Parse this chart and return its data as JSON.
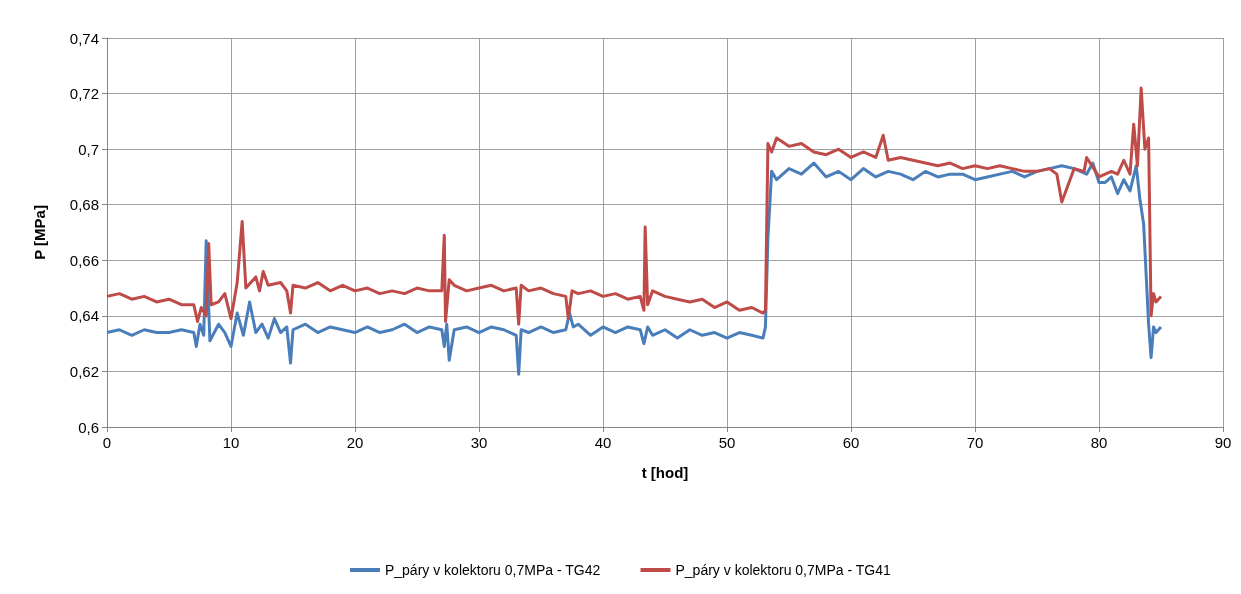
{
  "chart_data": {
    "type": "line",
    "xlabel": "t [hod]",
    "ylabel": "P [MPa]",
    "xlim": [
      0,
      90
    ],
    "xticks": [
      0,
      10,
      20,
      30,
      40,
      50,
      60,
      70,
      80,
      90
    ],
    "ylim": [
      0.6,
      0.74
    ],
    "yticks": [
      {
        "value": 0.6,
        "label": "0,6"
      },
      {
        "value": 0.62,
        "label": "0,62"
      },
      {
        "value": 0.64,
        "label": "0,64"
      },
      {
        "value": 0.66,
        "label": "0,66"
      },
      {
        "value": 0.68,
        "label": "0,68"
      },
      {
        "value": 0.7,
        "label": "0,7"
      },
      {
        "value": 0.72,
        "label": "0,72"
      },
      {
        "value": 0.74,
        "label": "0,74"
      }
    ],
    "grid": true,
    "legend": "bottom",
    "marker": "none",
    "line_style": "solid",
    "series": [
      {
        "name": "P_páry v kolektoru 0,7MPa - TG42",
        "color": "#4a7ebb",
        "x": [
          0,
          1,
          2,
          3,
          4,
          5,
          6,
          7,
          7.2,
          7.5,
          7.8,
          8.0,
          8.3,
          9,
          9.5,
          10,
          10.5,
          11,
          11.5,
          12,
          12.5,
          13,
          13.5,
          14,
          14.5,
          14.8,
          15,
          16,
          17,
          18,
          19,
          20,
          21,
          22,
          23,
          24,
          25,
          26,
          27,
          27.2,
          27.4,
          27.6,
          28,
          29,
          30,
          31,
          32,
          33,
          33.2,
          33.4,
          34,
          35,
          36,
          37,
          37.3,
          37.6,
          38,
          39,
          40,
          41,
          42,
          43,
          43.3,
          43.6,
          44,
          45,
          46,
          47,
          48,
          49,
          50,
          51,
          52,
          52.9,
          53.1,
          53.3,
          53.6,
          54,
          55,
          56,
          57,
          58,
          59,
          60,
          61,
          62,
          63,
          64,
          65,
          66,
          67,
          68,
          69,
          70,
          71,
          72,
          73,
          74,
          75,
          76,
          77,
          78,
          79,
          79.5,
          80,
          80.5,
          81,
          81.5,
          82,
          82.5,
          83,
          83.3,
          83.6,
          84,
          84.2,
          84.4,
          84.6,
          85
        ],
        "values": [
          0.634,
          0.635,
          0.633,
          0.635,
          0.634,
          0.634,
          0.635,
          0.634,
          0.629,
          0.637,
          0.633,
          0.667,
          0.631,
          0.637,
          0.634,
          0.629,
          0.641,
          0.633,
          0.645,
          0.634,
          0.637,
          0.632,
          0.639,
          0.634,
          0.636,
          0.623,
          0.635,
          0.637,
          0.634,
          0.636,
          0.635,
          0.634,
          0.636,
          0.634,
          0.635,
          0.637,
          0.634,
          0.636,
          0.635,
          0.629,
          0.637,
          0.624,
          0.635,
          0.636,
          0.634,
          0.636,
          0.635,
          0.633,
          0.619,
          0.635,
          0.634,
          0.636,
          0.634,
          0.635,
          0.641,
          0.636,
          0.637,
          0.633,
          0.636,
          0.634,
          0.636,
          0.635,
          0.63,
          0.636,
          0.633,
          0.635,
          0.632,
          0.635,
          0.633,
          0.634,
          0.632,
          0.634,
          0.633,
          0.632,
          0.636,
          0.668,
          0.692,
          0.689,
          0.693,
          0.691,
          0.695,
          0.69,
          0.692,
          0.689,
          0.693,
          0.69,
          0.692,
          0.691,
          0.689,
          0.692,
          0.69,
          0.691,
          0.691,
          0.689,
          0.69,
          0.691,
          0.692,
          0.69,
          0.692,
          0.693,
          0.694,
          0.693,
          0.691,
          0.695,
          0.688,
          0.688,
          0.69,
          0.684,
          0.689,
          0.685,
          0.694,
          0.682,
          0.673,
          0.637,
          0.625,
          0.636,
          0.634,
          0.636
        ]
      },
      {
        "name": "P_páry v kolektoru 0,7MPa - TG41",
        "color": "#be4b48",
        "x": [
          0,
          1,
          2,
          3,
          4,
          5,
          6,
          7,
          7.3,
          7.6,
          8,
          8.2,
          8.4,
          9,
          9.5,
          10,
          10.5,
          10.9,
          11.2,
          12,
          12.3,
          12.6,
          13,
          14,
          14.5,
          14.8,
          15,
          16,
          17,
          18,
          19,
          20,
          21,
          22,
          23,
          24,
          25,
          26,
          27,
          27.2,
          27.3,
          27.6,
          28,
          29,
          30,
          31,
          32,
          33,
          33.2,
          33.4,
          34,
          35,
          36,
          37,
          37.2,
          37.5,
          38,
          39,
          40,
          41,
          42,
          43,
          43.3,
          43.4,
          43.6,
          44,
          45,
          46,
          47,
          48,
          49,
          50,
          51,
          52,
          52.9,
          53.1,
          53.3,
          53.6,
          54,
          55,
          56,
          57,
          58,
          59,
          60,
          61,
          62,
          62.6,
          63,
          64,
          65,
          66,
          67,
          68,
          69,
          70,
          71,
          72,
          73,
          74,
          75,
          76,
          76.6,
          77,
          78,
          78.8,
          79,
          80,
          81,
          81.5,
          82,
          82.5,
          82.8,
          83.1,
          83.4,
          83.7,
          84,
          84.2,
          84.4,
          84.6,
          85
        ],
        "values": [
          0.647,
          0.648,
          0.646,
          0.647,
          0.645,
          0.646,
          0.644,
          0.644,
          0.638,
          0.643,
          0.64,
          0.666,
          0.644,
          0.645,
          0.648,
          0.639,
          0.652,
          0.674,
          0.65,
          0.654,
          0.649,
          0.656,
          0.651,
          0.652,
          0.649,
          0.641,
          0.651,
          0.65,
          0.652,
          0.649,
          0.651,
          0.649,
          0.65,
          0.648,
          0.649,
          0.648,
          0.65,
          0.649,
          0.649,
          0.669,
          0.638,
          0.653,
          0.651,
          0.649,
          0.65,
          0.651,
          0.649,
          0.65,
          0.637,
          0.651,
          0.649,
          0.65,
          0.648,
          0.647,
          0.639,
          0.649,
          0.648,
          0.649,
          0.647,
          0.648,
          0.646,
          0.647,
          0.642,
          0.672,
          0.644,
          0.649,
          0.647,
          0.646,
          0.645,
          0.646,
          0.643,
          0.645,
          0.642,
          0.643,
          0.641,
          0.642,
          0.702,
          0.699,
          0.704,
          0.701,
          0.702,
          0.699,
          0.698,
          0.7,
          0.697,
          0.699,
          0.697,
          0.705,
          0.696,
          0.697,
          0.696,
          0.695,
          0.694,
          0.695,
          0.693,
          0.694,
          0.693,
          0.694,
          0.693,
          0.692,
          0.692,
          0.693,
          0.691,
          0.681,
          0.693,
          0.692,
          0.697,
          0.69,
          0.692,
          0.691,
          0.696,
          0.691,
          0.709,
          0.694,
          0.722,
          0.7,
          0.704,
          0.64,
          0.648,
          0.645,
          0.647
        ]
      }
    ]
  }
}
